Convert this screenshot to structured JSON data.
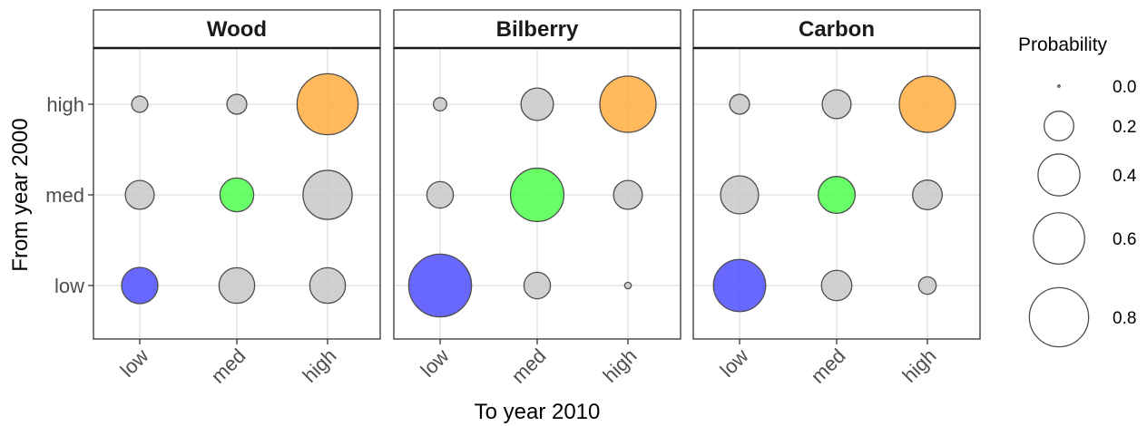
{
  "chart_data": {
    "type": "scatter",
    "xlabel": "To year 2010",
    "ylabel": "From year 2000",
    "x_categories": [
      "low",
      "med",
      "high"
    ],
    "y_categories": [
      "low",
      "med",
      "high"
    ],
    "grid": true,
    "legend_position": "right",
    "legend": {
      "title": "Probability",
      "breaks": [
        0.0,
        0.2,
        0.4,
        0.6,
        0.8
      ],
      "labels": [
        "0.0",
        "0.2",
        "0.4",
        "0.6",
        "0.8"
      ]
    },
    "colors": {
      "diagonal_low": "#4d4dff",
      "diagonal_med": "#4dff4d",
      "diagonal_high": "#ffad40",
      "off_diagonal": "#c8c8c8",
      "stroke": "#4d4d4d",
      "strip_bg": "#ffffff",
      "grid": "#ebebeb"
    },
    "panels": [
      {
        "name": "Wood",
        "points": [
          {
            "from": "high",
            "to": "low",
            "p": 0.06
          },
          {
            "from": "high",
            "to": "med",
            "p": 0.09
          },
          {
            "from": "high",
            "to": "high",
            "p": 0.85
          },
          {
            "from": "med",
            "to": "low",
            "p": 0.19
          },
          {
            "from": "med",
            "to": "med",
            "p": 0.26
          },
          {
            "from": "med",
            "to": "high",
            "p": 0.55
          },
          {
            "from": "low",
            "to": "low",
            "p": 0.3
          },
          {
            "from": "low",
            "to": "med",
            "p": 0.29
          },
          {
            "from": "low",
            "to": "high",
            "p": 0.29
          }
        ]
      },
      {
        "name": "Bilberry",
        "points": [
          {
            "from": "high",
            "to": "low",
            "p": 0.04
          },
          {
            "from": "high",
            "to": "med",
            "p": 0.24
          },
          {
            "from": "high",
            "to": "high",
            "p": 0.72
          },
          {
            "from": "med",
            "to": "low",
            "p": 0.16
          },
          {
            "from": "med",
            "to": "med",
            "p": 0.65
          },
          {
            "from": "med",
            "to": "high",
            "p": 0.19
          },
          {
            "from": "low",
            "to": "low",
            "p": 0.9
          },
          {
            "from": "low",
            "to": "med",
            "p": 0.16
          },
          {
            "from": "low",
            "to": "high",
            "p": 0.01
          }
        ]
      },
      {
        "name": "Carbon",
        "points": [
          {
            "from": "high",
            "to": "low",
            "p": 0.09
          },
          {
            "from": "high",
            "to": "med",
            "p": 0.19
          },
          {
            "from": "high",
            "to": "high",
            "p": 0.72
          },
          {
            "from": "med",
            "to": "low",
            "p": 0.33
          },
          {
            "from": "med",
            "to": "med",
            "p": 0.31
          },
          {
            "from": "med",
            "to": "high",
            "p": 0.2
          },
          {
            "from": "low",
            "to": "low",
            "p": 0.62
          },
          {
            "from": "low",
            "to": "med",
            "p": 0.21
          },
          {
            "from": "low",
            "to": "high",
            "p": 0.07
          }
        ]
      }
    ]
  }
}
